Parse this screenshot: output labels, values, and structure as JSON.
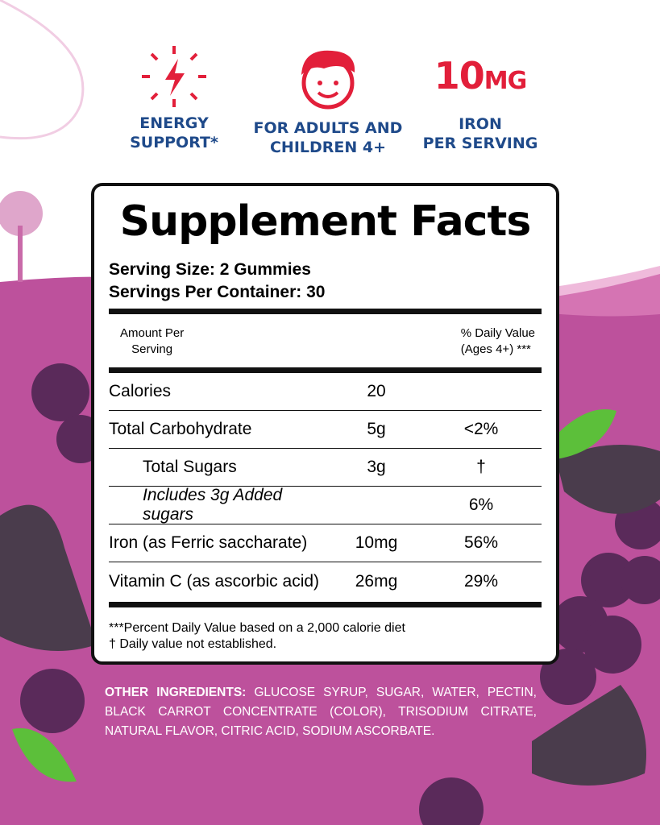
{
  "badges": [
    {
      "icon": "lightning-bolt-icon",
      "line1": "ENERGY",
      "line2": "SUPPORT*"
    },
    {
      "icon": "child-face-icon",
      "line1": "FOR ADULTS AND",
      "line2": "CHILDREN 4+"
    },
    {
      "big": "10",
      "big_unit": "MG",
      "line1": "IRON",
      "line2": "PER SERVING"
    }
  ],
  "label": {
    "title": "Supplement Facts",
    "serving_size": "Serving Size: 2 Gummies",
    "servings_per_container": "Servings Per Container: 30",
    "header_left_1": "Amount Per",
    "header_left_2": "Serving",
    "header_right_1": "% Daily Value",
    "header_right_2": "(Ages 4+) ***",
    "rows": [
      {
        "name": "Calories",
        "amount": "20",
        "dv": ""
      },
      {
        "name": "Total Carbohydrate",
        "amount": "5g",
        "dv": "<2%"
      },
      {
        "name": "Total Sugars",
        "amount": "3g",
        "dv": "†"
      },
      {
        "name": "Includes 3g Added sugars",
        "amount": "",
        "dv": "6%"
      },
      {
        "name": "Iron (as Ferric saccharate)",
        "amount": "10mg",
        "dv": "56%"
      },
      {
        "name": "Vitamin C (as ascorbic acid)",
        "amount": "26mg",
        "dv": "29%"
      }
    ],
    "footnote_1": "***Percent Daily Value based on a 2,000 calorie diet",
    "footnote_2": "† Daily value not established."
  },
  "ingredients": {
    "heading": "OTHER INGREDIENTS:",
    "text": " GLUCOSE SYRUP, SUGAR, WATER, PECTIN, BLACK CARROT CONCENTRATE (COLOR), TRISODIUM CITRATE, NATURAL FLAVOR, CITRIC ACID, SODIUM ASCORBATE."
  },
  "colors": {
    "blue": "#1f4a8a",
    "red": "#e21f3a",
    "purple": "#bd519c"
  }
}
